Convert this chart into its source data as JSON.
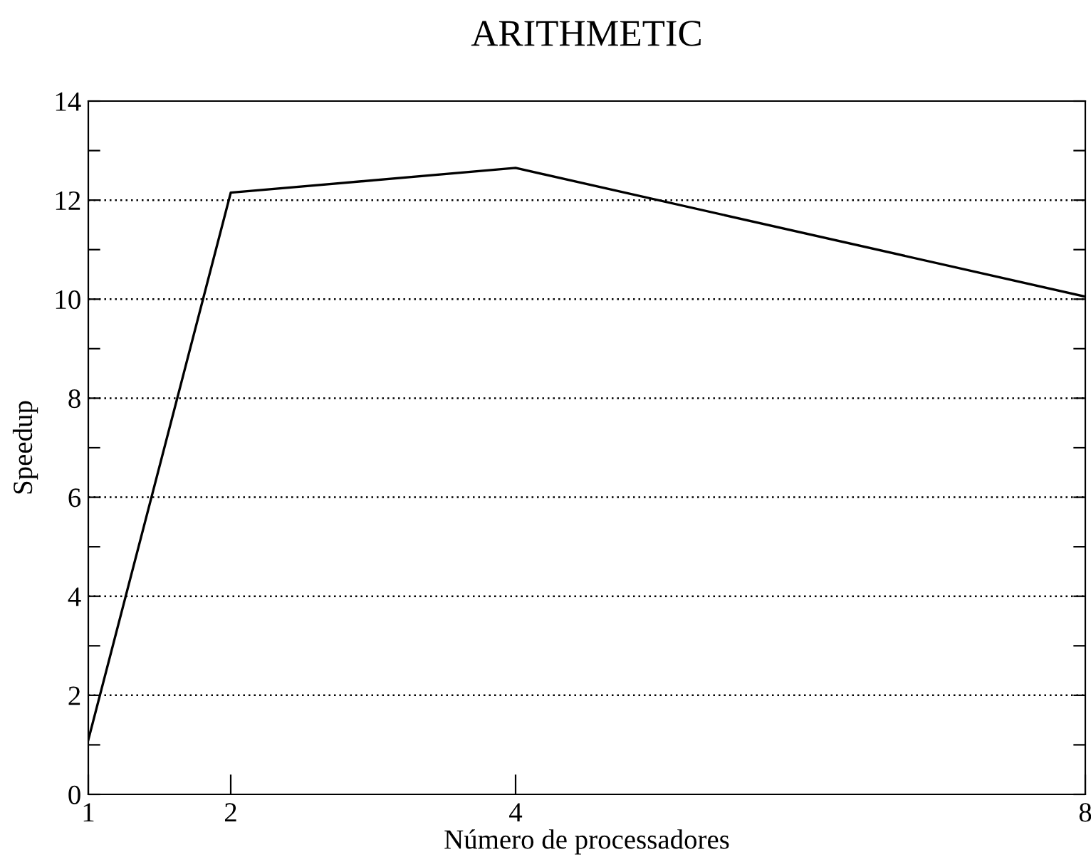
{
  "chart_data": {
    "type": "line",
    "title": "ARITHMETIC",
    "xlabel": "Número de processadores",
    "ylabel": "Speedup",
    "x": [
      1,
      2,
      4,
      8
    ],
    "series": [
      {
        "color": "#000000",
        "values": [
          1.1,
          12.15,
          12.65,
          10.05
        ]
      }
    ],
    "xlim": [
      1,
      8
    ],
    "xticks": [
      1,
      2,
      4,
      8
    ],
    "ylim": [
      0,
      14
    ],
    "yticks": [
      0,
      {
        "value": 1,
        "label": null
      },
      2,
      {
        "value": 3,
        "label": null
      },
      4,
      {
        "value": 5,
        "label": null
      },
      6,
      {
        "value": 7,
        "label": null
      },
      8,
      {
        "value": 9,
        "label": null
      },
      10,
      {
        "value": 11,
        "label": null
      },
      12,
      {
        "value": 13,
        "label": null
      },
      14
    ],
    "grid": "y",
    "line_style": "solid",
    "marker": "none"
  }
}
